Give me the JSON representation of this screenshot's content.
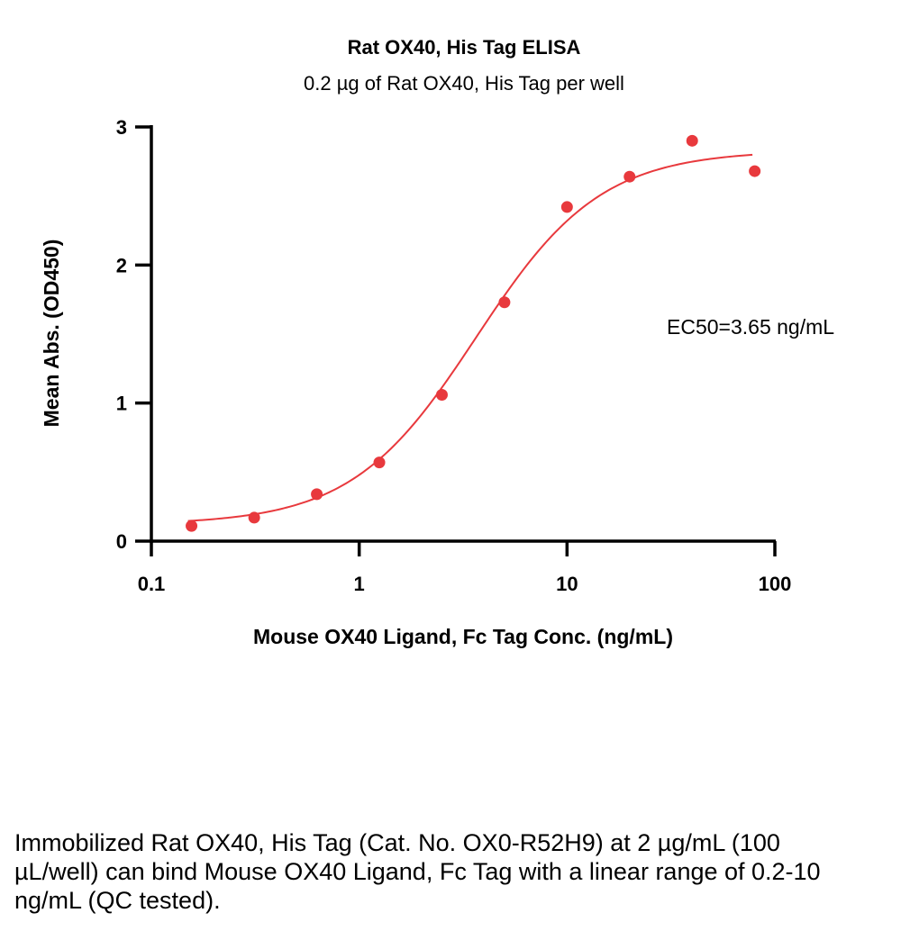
{
  "chart_data": {
    "type": "scatter",
    "title": "Rat OX40, His Tag ELISA",
    "subtitle": "0.2 µg of Rat OX40, His Tag per well",
    "xlabel": "Mouse OX40 Ligand, Fc Tag Conc. (ng/mL)",
    "ylabel": "Mean Abs. (OD450)",
    "x_scale": "log",
    "xlim": [
      0.1,
      100
    ],
    "ylim": [
      0,
      3
    ],
    "x_ticks": [
      0.1,
      1,
      10,
      100
    ],
    "x_tick_labels": [
      "0.1",
      "1",
      "10",
      "100"
    ],
    "y_ticks": [
      0,
      1,
      2,
      3
    ],
    "y_tick_labels": [
      "0",
      "1",
      "2",
      "3"
    ],
    "grid": false,
    "colors": {
      "series": "#e8393d"
    },
    "series": [
      {
        "x": [
          0.156,
          0.3125,
          0.625,
          1.25,
          2.5,
          5,
          10,
          20,
          40,
          80
        ],
        "y": [
          0.11,
          0.17,
          0.34,
          0.57,
          1.06,
          1.73,
          2.42,
          2.64,
          2.9,
          2.68
        ]
      }
    ],
    "fit": {
      "type": "4PL",
      "bottom": 0.12,
      "top": 2.83,
      "ec50": 3.65,
      "hill": 1.45,
      "x_range": [
        0.15,
        78
      ]
    },
    "annotations": [
      {
        "text": "EC50=3.65 ng/mL"
      }
    ]
  },
  "caption": "Immobilized Rat OX40, His Tag (Cat. No. OX0-R52H9) at 2 µg/mL (100 µL/well) can bind Mouse OX40 Ligand, Fc Tag with a linear range of 0.2-10 ng/mL (QC tested)."
}
